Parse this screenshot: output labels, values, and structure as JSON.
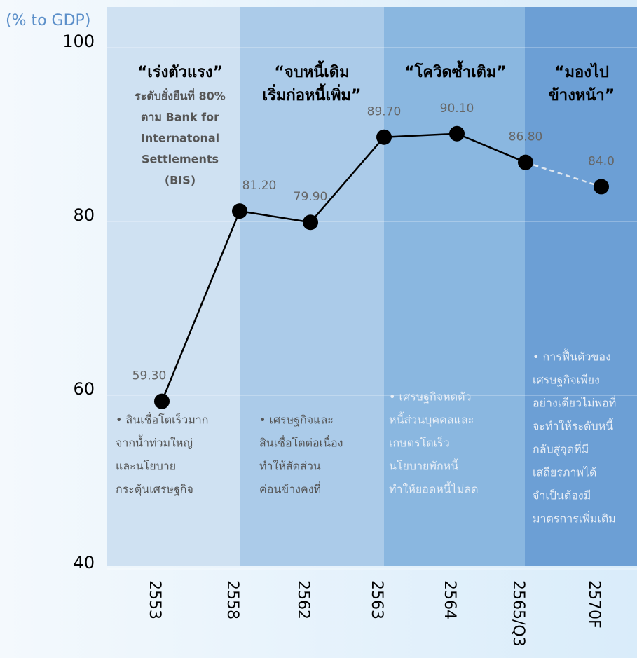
{
  "chart_data": {
    "type": "line",
    "y_axis_label": "(% to GDP)",
    "categories": [
      "2553",
      "2558",
      "2562",
      "2563",
      "2564",
      "2565/Q3",
      "2570F"
    ],
    "series": [
      {
        "color": "#000000",
        "values": [
          59.3,
          81.2,
          79.9,
          89.7,
          90.1,
          86.8,
          84.0
        ],
        "value_labels": [
          "59.30",
          "81.20",
          "79.90",
          "89.70",
          "90.10",
          "86.80",
          "84.0"
        ]
      }
    ],
    "ylim": [
      40,
      100
    ],
    "yticks": [
      40,
      60,
      80,
      100
    ],
    "grid": true,
    "annotations": [
      {
        "title": [
          "“เร่งตัวแรง”"
        ],
        "subtitle": [
          "ระดับยั่งยืนที่ 80%",
          "ตาม Bank for",
          "Internatonal",
          "Settlements",
          "(BIS)"
        ],
        "note": [
          "• สินเชื่อโตเร็วมาก",
          "จากน้ำท่วมใหญ่",
          "และนโยบาย",
          "กระตุ้นเศรษฐกิจ"
        ]
      },
      {
        "title": [
          "“จบหนี้เดิม",
          "เริ่มก่อหนี้เพิ่ม”"
        ],
        "note": [
          "• เศรษฐกิจและ",
          "สินเชื่อโตต่อเนื่อง",
          "ทำให้สัดส่วน",
          "ค่อนข้างคงที่"
        ]
      },
      {
        "title": [
          "“โควิดซ้ำเติม”"
        ],
        "note": [
          "• เศรษฐกิจหดตัว",
          "หนี้ส่วนบุคคลและ",
          "เกษตรโตเร็ว",
          "นโยบายพักหนี้",
          "ทำให้ยอดหนี้ไม่ลด"
        ]
      },
      {
        "title": [
          "“มองไป",
          "ข้างหน้า”"
        ],
        "note": [
          "• การฟื้นตัวของ",
          "เศรษฐกิจเพียง",
          "อย่างเดียวไม่พอที่",
          "จะทำให้ระดับหนี้",
          "กลับสู่จุดที่มี",
          "เสถียรภาพได้",
          "จำเป็นต้องมี",
          "มาตรการเพิ่มเติม"
        ]
      }
    ]
  }
}
